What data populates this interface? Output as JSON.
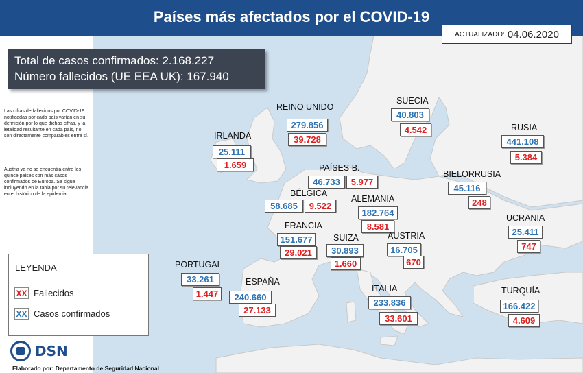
{
  "header": {
    "title": "Países más afectados por el COVID-19"
  },
  "updated": {
    "label": "ACTUALIZADO:",
    "date": "04.06.2020"
  },
  "totals": {
    "confirmed": "Total de casos confirmados:  2.168.227",
    "deaths": "Número fallecidos (UE EEA UK): 167.940"
  },
  "notes": {
    "note1": "Las cifras de fallecidos por COVID-19 notificadas por cada país varían en su definición por lo que dichas cifras, y la letalidad resultante en cada país, no son directamente comparables entre sí.",
    "note2": "Austria ya no se encuentra entre los quince países con más casos confirmados de Europa. Se sigue incluyendo en la tabla por su relevancia en el histórico de la epidemia."
  },
  "legend": {
    "title": "LEYENDA",
    "deaths_marker": "XX",
    "deaths_label": "Fallecidos",
    "cases_marker": "XX",
    "cases_label": "Casos confirmados"
  },
  "countries": [
    {
      "name": "IRLANDA",
      "cases": "25.111",
      "deaths": "1.659"
    },
    {
      "name": "REINO UNIDO",
      "cases": "279.856",
      "deaths": "39.728"
    },
    {
      "name": "SUECIA",
      "cases": "40.803",
      "deaths": "4.542"
    },
    {
      "name": "RUSIA",
      "cases": "441.108",
      "deaths": "5.384"
    },
    {
      "name": "PAÍSES B.",
      "cases": "46.733",
      "deaths": "5.977"
    },
    {
      "name": "BÉLGICA",
      "cases": "58.685",
      "deaths": "9.522"
    },
    {
      "name": "BIELORRUSIA",
      "cases": "45.116",
      "deaths": "248"
    },
    {
      "name": "ALEMANIA",
      "cases": "182.764",
      "deaths": "8.581"
    },
    {
      "name": "FRANCIA",
      "cases": "151.677",
      "deaths": "29.021"
    },
    {
      "name": "UCRANIA",
      "cases": "25.411",
      "deaths": "747"
    },
    {
      "name": "SUIZA",
      "cases": "30.893",
      "deaths": "1.660"
    },
    {
      "name": "AUSTRIA",
      "cases": "16.705",
      "deaths": "670"
    },
    {
      "name": "PORTUGAL",
      "cases": "33.261",
      "deaths": "1.447"
    },
    {
      "name": "ESPAÑA",
      "cases": "240.660",
      "deaths": "27.133"
    },
    {
      "name": "ITALIA",
      "cases": "233.836",
      "deaths": "33.601"
    },
    {
      "name": "TURQUÍA",
      "cases": "166.422",
      "deaths": "4.609"
    }
  ],
  "logo": {
    "text": "DSN"
  },
  "credit": "Elaborado por: Departamento de Seguridad Nacional",
  "colors": {
    "header": "#1f4e8c",
    "sea": "#cfe1ee",
    "land": "#f2f2f2",
    "cases": "#2e74b5",
    "deaths": "#e02020"
  }
}
